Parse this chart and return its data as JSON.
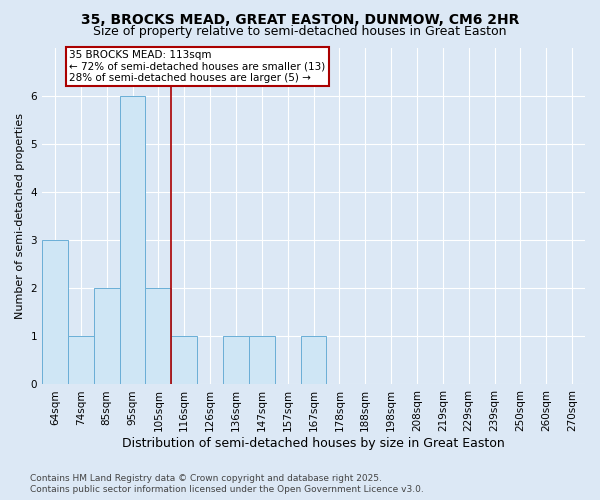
{
  "title": "35, BROCKS MEAD, GREAT EASTON, DUNMOW, CM6 2HR",
  "subtitle": "Size of property relative to semi-detached houses in Great Easton",
  "xlabel": "Distribution of semi-detached houses by size in Great Easton",
  "ylabel": "Number of semi-detached properties",
  "bin_labels": [
    "64sqm",
    "74sqm",
    "85sqm",
    "95sqm",
    "105sqm",
    "116sqm",
    "126sqm",
    "136sqm",
    "147sqm",
    "157sqm",
    "167sqm",
    "178sqm",
    "188sqm",
    "198sqm",
    "208sqm",
    "219sqm",
    "229sqm",
    "239sqm",
    "250sqm",
    "260sqm",
    "270sqm"
  ],
  "bar_values": [
    3,
    1,
    2,
    6,
    2,
    1,
    0,
    1,
    1,
    0,
    1,
    0,
    0,
    0,
    0,
    0,
    0,
    0,
    0,
    0,
    0
  ],
  "bar_color": "#cfe6f5",
  "bar_edgecolor": "#6aaed6",
  "property_line_x": 4.5,
  "property_line_color": "#aa0000",
  "annotation_line1": "35 BROCKS MEAD: 113sqm",
  "annotation_line2": "← 72% of semi-detached houses are smaller (13)",
  "annotation_line3": "28% of semi-detached houses are larger (5) →",
  "annotation_box_edgecolor": "#aa0000",
  "annotation_box_facecolor": "#ffffff",
  "ylim": [
    0,
    7
  ],
  "yticks": [
    0,
    1,
    2,
    3,
    4,
    5,
    6
  ],
  "footer_text": "Contains HM Land Registry data © Crown copyright and database right 2025.\nContains public sector information licensed under the Open Government Licence v3.0.",
  "bg_color": "#dce8f5",
  "plot_bg_color": "#dce8f5",
  "title_fontsize": 10,
  "subtitle_fontsize": 9,
  "xlabel_fontsize": 9,
  "ylabel_fontsize": 8,
  "tick_fontsize": 7.5,
  "footer_fontsize": 6.5
}
